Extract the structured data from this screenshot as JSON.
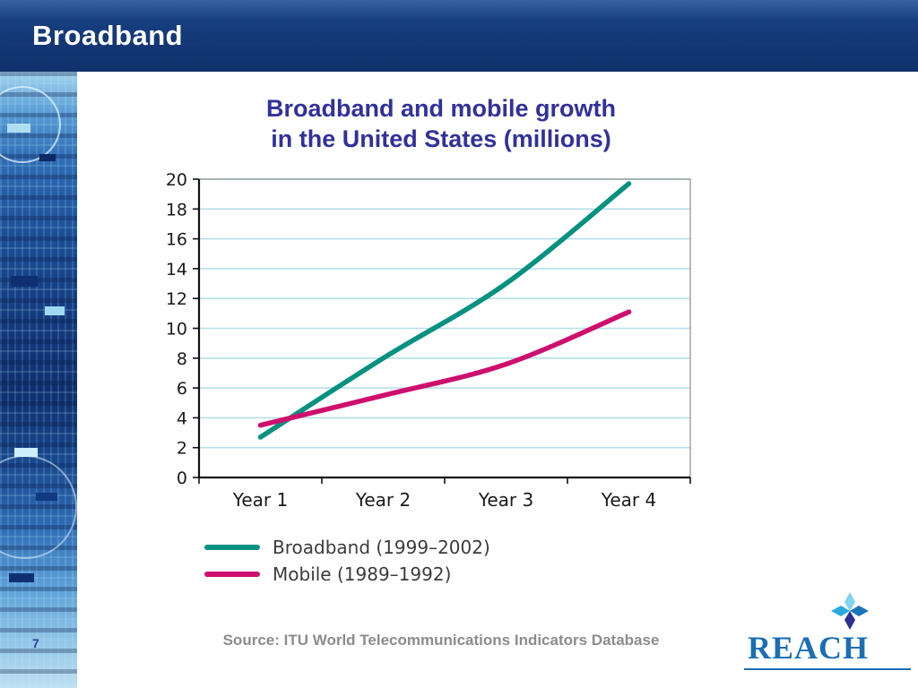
{
  "slide": {
    "header": {
      "title": "Broadband"
    },
    "title_line1": "Broadband and mobile growth",
    "title_line2": "in the United States (millions)",
    "page_number": "7",
    "source": "Source: ITU World Telecommunications Indicators Database",
    "logo": {
      "text": "REACH",
      "icon": "compass-star-icon"
    }
  },
  "colors": {
    "header_bg": "#163e7e",
    "title_text": "#31319c",
    "gridline": "#b5dfe8",
    "source_text": "#8c8c8c",
    "logo_blue": "#1b6eb4",
    "page_num": "#2f3a99",
    "broadband_line": "#069180",
    "mobile_line": "#cf0f6e"
  },
  "chart_data": {
    "type": "line",
    "title": "Broadband and mobile growth in the United States (millions)",
    "categories": [
      "Year 1",
      "Year 2",
      "Year 3",
      "Year 4"
    ],
    "series": [
      {
        "name": "Broadband (1999–2002)",
        "color": "#069180",
        "values": [
          2.7,
          8.0,
          13.0,
          19.7
        ]
      },
      {
        "name": "Mobile (1989–1992)",
        "color": "#cf0f6e",
        "values": [
          3.5,
          5.5,
          7.6,
          11.1
        ]
      }
    ],
    "xlabel": "",
    "ylabel": "",
    "ylim": [
      0,
      20
    ],
    "ytick_step": 2,
    "grid": true,
    "legend_position": "bottom-left"
  }
}
